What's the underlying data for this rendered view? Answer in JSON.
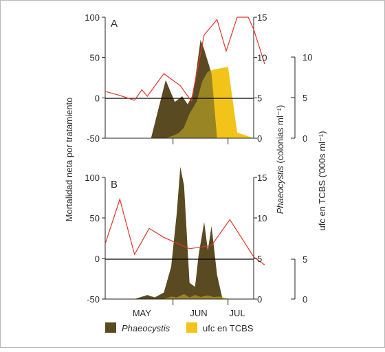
{
  "axes": {
    "left_title": "Mortalidad neta por tratamiento",
    "right_title_italic": "Phaeocystis",
    "right_title_rest": " (colonias ml⁻¹)",
    "ufc_title": "ufc en TCBS ('000s ml⁻¹)"
  },
  "months": [
    "MAY",
    "JUN",
    "JUL"
  ],
  "legend": [
    {
      "label": "Phaeocystis",
      "color": "#5a4a22"
    },
    {
      "label": "ufc en TCBS",
      "color": "#f2c318"
    }
  ],
  "colors": {
    "phaeocystis": "#5a4a22",
    "ufc": "#f2c318",
    "overlap": "#9a8524",
    "mortality": "#e0352b"
  },
  "panels": [
    {
      "label": "A"
    },
    {
      "label": "B"
    }
  ],
  "chart_data": [
    {
      "type": "area",
      "panel": "A",
      "x_axis": {
        "type": "date",
        "range": [
          "1999-04-25",
          "1999-07-15"
        ],
        "ticks": [
          "MAY",
          "JUN",
          "JUL"
        ]
      },
      "left_axis": {
        "ticks": [
          -50,
          0,
          50,
          100
        ],
        "range": [
          -50,
          100
        ]
      },
      "right_axis": {
        "ticks": [
          0,
          5,
          10,
          15
        ],
        "range": [
          0,
          15
        ]
      },
      "ufc_axis": {
        "ticks": [
          0,
          5,
          10
        ],
        "range": [
          0,
          10
        ]
      },
      "series": [
        {
          "name": "Phaeocystis",
          "axis": "right",
          "points": [
            [
              "1999-05-20",
              0
            ],
            [
              "1999-05-28",
              7.2
            ],
            [
              "1999-06-02",
              4.5
            ],
            [
              "1999-06-06",
              5.2
            ],
            [
              "1999-06-09",
              4.2
            ],
            [
              "1999-06-12",
              5.5
            ],
            [
              "1999-06-16",
              12.2
            ],
            [
              "1999-06-18",
              11.0
            ],
            [
              "1999-06-22",
              8.0
            ],
            [
              "1999-06-25",
              0
            ]
          ]
        },
        {
          "name": "ufc en TCBS",
          "axis": "ufc",
          "points": [
            [
              "1999-05-28",
              0
            ],
            [
              "1999-06-01",
              0.3
            ],
            [
              "1999-06-04",
              0.6
            ],
            [
              "1999-06-07",
              1.3
            ],
            [
              "1999-06-10",
              3.0
            ],
            [
              "1999-06-14",
              4.5
            ],
            [
              "1999-06-17",
              7.0
            ],
            [
              "1999-06-20",
              8.2
            ],
            [
              "1999-06-24",
              8.5
            ],
            [
              "1999-07-01",
              8.8
            ],
            [
              "1999-07-06",
              0.7
            ],
            [
              "1999-07-15",
              0
            ]
          ]
        },
        {
          "name": "Mortalidad neta por tratamiento",
          "axis": "left",
          "points": [
            [
              "1999-04-25",
              8
            ],
            [
              "1999-05-03",
              3
            ],
            [
              "1999-05-11",
              -3
            ],
            [
              "1999-05-15",
              10
            ],
            [
              "1999-05-18",
              2
            ],
            [
              "1999-05-27",
              30
            ],
            [
              "1999-06-05",
              15
            ],
            [
              "1999-06-11",
              -4
            ],
            [
              "1999-06-18",
              78
            ],
            [
              "1999-06-25",
              97
            ],
            [
              "1999-06-30",
              58
            ],
            [
              "1999-07-06",
              100
            ],
            [
              "1999-07-12",
              100
            ],
            [
              "1999-07-15",
              85
            ],
            [
              "1999-07-21",
              42
            ]
          ]
        }
      ]
    },
    {
      "type": "area",
      "panel": "B",
      "x_axis": {
        "type": "date",
        "range": [
          "1999-04-25",
          "1999-07-15"
        ],
        "ticks": [
          "MAY",
          "JUN",
          "JUL"
        ]
      },
      "left_axis": {
        "ticks": [
          -50,
          0,
          50,
          100
        ],
        "range": [
          -50,
          100
        ]
      },
      "right_axis": {
        "ticks": [
          0,
          5,
          10,
          15
        ],
        "range": [
          0,
          15
        ]
      },
      "ufc_axis": {
        "ticks": [
          0,
          5
        ],
        "range": [
          0,
          5
        ]
      },
      "series": [
        {
          "name": "Phaeocystis",
          "axis": "right",
          "points": [
            [
              "1999-05-11",
              0
            ],
            [
              "1999-05-18",
              0.5
            ],
            [
              "1999-05-22",
              0.2
            ],
            [
              "1999-05-27",
              0.8
            ],
            [
              "1999-05-31",
              4.0
            ],
            [
              "1999-06-03",
              10.5
            ],
            [
              "1999-06-05",
              16.3
            ],
            [
              "1999-06-07",
              14.0
            ],
            [
              "1999-06-10",
              2.0
            ],
            [
              "1999-06-13",
              1.5
            ],
            [
              "1999-06-15",
              5.5
            ],
            [
              "1999-06-18",
              9.5
            ],
            [
              "1999-06-20",
              6.0
            ],
            [
              "1999-06-22",
              9.0
            ],
            [
              "1999-06-25",
              3.0
            ],
            [
              "1999-06-28",
              0
            ]
          ]
        },
        {
          "name": "ufc en TCBS",
          "axis": "ufc",
          "points": [
            [
              "1999-05-27",
              0
            ],
            [
              "1999-05-31",
              0.3
            ],
            [
              "1999-06-03",
              0.2
            ],
            [
              "1999-06-07",
              0.6
            ],
            [
              "1999-06-10",
              0.2
            ],
            [
              "1999-06-13",
              0.5
            ],
            [
              "1999-06-16",
              0.25
            ],
            [
              "1999-06-20",
              0.45
            ],
            [
              "1999-06-23",
              0.25
            ],
            [
              "1999-06-27",
              0.3
            ],
            [
              "1999-07-02",
              0
            ]
          ]
        },
        {
          "name": "Mortalidad neta por tratamiento",
          "axis": "left",
          "points": [
            [
              "1999-04-25",
              18
            ],
            [
              "1999-05-03",
              73
            ],
            [
              "1999-05-11",
              5
            ],
            [
              "1999-05-19",
              37
            ],
            [
              "1999-05-27",
              26
            ],
            [
              "1999-06-04",
              18
            ],
            [
              "1999-06-10",
              12
            ],
            [
              "1999-06-22",
              16
            ],
            [
              "1999-07-02",
              48
            ],
            [
              "1999-07-15",
              2
            ],
            [
              "1999-07-21",
              -8
            ]
          ]
        }
      ]
    }
  ]
}
